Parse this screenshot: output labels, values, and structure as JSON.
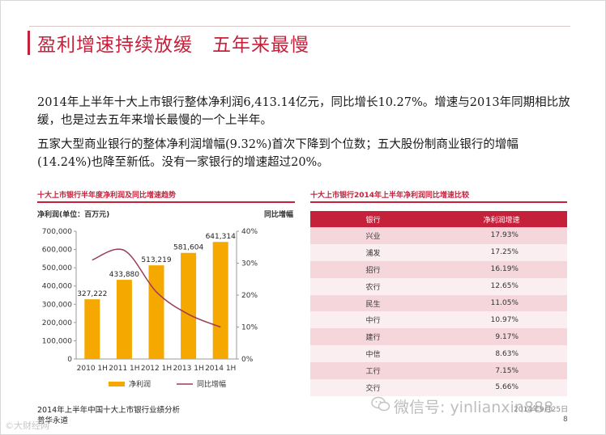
{
  "slide": {
    "title": "盈利增速持续放缓　五年来最慢",
    "paragraph1": "2014年上半年十大上市银行整体净利润6,413.14亿元，同比增长10.27%。增速与2013年同期相比放缓，也是过去五年来增长最慢的一个上半年。",
    "paragraph2": "五家大型商业银行的整体净利润增幅(9.32%)首次下降到个位数；五大股份制商业银行的增幅(14.24%)也降至新低。没有一家银行的增速超过20%。",
    "footer_line1": "2014年上半年中国十大上市银行业绩分析",
    "footer_line2": "普华永道",
    "wechat": "微信号: yinlianxin888",
    "date": "2014年9月25日",
    "page_number": "8",
    "watermark_left": "©大财经网"
  },
  "colors": {
    "accent": "#c6213b",
    "bar": "#f5a800",
    "line": "#9b3b5a",
    "row_odd": "#f4d6db",
    "row_even": "#fbeef0"
  },
  "left_panel": {
    "title": "十大上市银行半年度净利润及同比增速趋势",
    "left_axis_label": "净利润(单位：百万元)",
    "right_axis_label": "同比增幅"
  },
  "right_panel": {
    "title": "十大上市银行2014年上半年净利润同比增速比较",
    "headers": [
      "银行",
      "净利润增速"
    ],
    "rows": [
      {
        "bank": "兴业",
        "growth": "17.93%"
      },
      {
        "bank": "浦发",
        "growth": "17.25%"
      },
      {
        "bank": "招行",
        "growth": "16.19%"
      },
      {
        "bank": "农行",
        "growth": "12.65%"
      },
      {
        "bank": "民生",
        "growth": "11.05%"
      },
      {
        "bank": "中行",
        "growth": "10.97%"
      },
      {
        "bank": "建行",
        "growth": "9.17%"
      },
      {
        "bank": "中信",
        "growth": "8.63%"
      },
      {
        "bank": "工行",
        "growth": "7.15%"
      },
      {
        "bank": "交行",
        "growth": "5.66%"
      }
    ]
  },
  "chart_data": [
    {
      "type": "bar",
      "title": "十大上市银行半年度净利润及同比增速趋势",
      "categories": [
        "2010 1H",
        "2011 1H",
        "2012 1H",
        "2013 1H",
        "2014 1H"
      ],
      "series": [
        {
          "name": "净利润",
          "type": "bar",
          "axis": "left",
          "values": [
            327222,
            433880,
            513219,
            581604,
            641314
          ]
        },
        {
          "name": "同比增幅",
          "type": "line",
          "axis": "right",
          "values": [
            31,
            34,
            21,
            14,
            10
          ]
        }
      ],
      "ylabel": "净利润(单位：百万元)",
      "ylim": [
        0,
        700000
      ],
      "yticks": [
        "0",
        "100,000",
        "200,000",
        "300,000",
        "400,000",
        "500,000",
        "600,000",
        "700,000"
      ],
      "y2label": "同比增幅",
      "y2lim": [
        0,
        40
      ],
      "y2ticks": [
        "0%",
        "10%",
        "20%",
        "30%",
        "40%"
      ],
      "data_labels": [
        "327,222",
        "433,880",
        "513,219",
        "581,604",
        "641,314"
      ],
      "legend": "bottom",
      "grid": false
    },
    {
      "type": "table",
      "title": "十大上市银行2014年上半年净利润同比增速比较",
      "columns": [
        "银行",
        "净利润增速"
      ],
      "categories": [
        "兴业",
        "浦发",
        "招行",
        "农行",
        "民生",
        "中行",
        "建行",
        "中信",
        "工行",
        "交行"
      ],
      "values": [
        17.93,
        17.25,
        16.19,
        12.65,
        11.05,
        10.97,
        9.17,
        8.63,
        7.15,
        5.66
      ]
    }
  ]
}
